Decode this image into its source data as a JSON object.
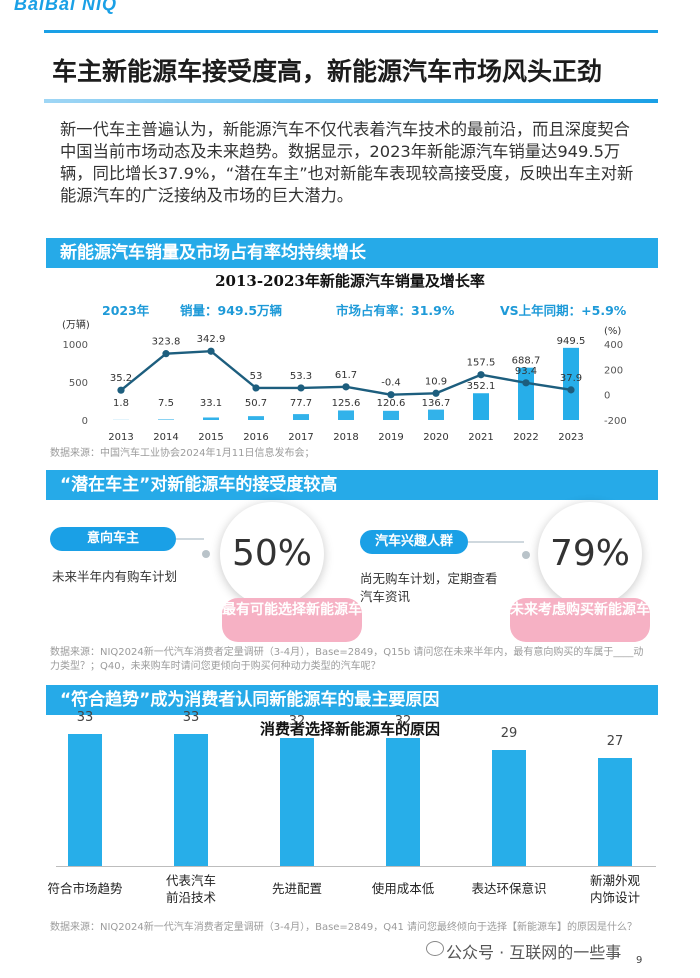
{
  "header": {
    "logo_text": "BaiBai NIQ",
    "title": "车主新能源车接受度高，新能源汽车市场风头正劲"
  },
  "intro": "新一代车主普遍认为，新能源汽车不仅代表着汽车技术的最前沿，而且深度契合中国当前市场动态及未来趋势。数据显示，2023年新能源汽车销量达949.5万辆，同比增长37.9%，“潜在车主”也对新能车表现较高接受度，反映出车主对新能源汽车的广泛接纳及市场的巨大潜力。",
  "section1": {
    "band": "新能源汽车销量及市场占有率均持续增长",
    "chart_title": "2013-2023年新能源汽车销量及增长率",
    "kpis": {
      "year": "2023年",
      "sales": "销量：949.5万辆",
      "share": "市场占有率：31.9%",
      "yoy": "VS上年同期：+5.9%"
    },
    "left_unit": "(万辆)",
    "right_unit": "(%)",
    "left_ticks": [
      "1000",
      "500",
      "0"
    ],
    "right_ticks": [
      "400",
      "200",
      "0",
      "-200"
    ],
    "source": "数据来源：中国汽车工业协会2024年1月11日信息发布会；"
  },
  "section2": {
    "band": "“潜在车主”对新能源车的接受度较高",
    "left": {
      "pill": "意向车主",
      "desc": "未来半年内有购车计划",
      "percent": "50%",
      "callout": "最有可能选择新能源车"
    },
    "right": {
      "pill": "汽车兴趣人群",
      "desc": "尚无购车计划，定期查看汽车资讯",
      "percent": "79%",
      "callout": "未来考虑购买新能源车"
    },
    "source": "数据来源：NIQ2024新一代汽车消费者定量调研（3-4月），Base=2849，Q15b 请问您在未来半年内，最有意向购买的车属于____动力类型？；Q40，未来购车时请问您更倾向于购买何种动力类型的汽车呢？"
  },
  "section3": {
    "band": "“符合趋势”成为消费者认同新能源车的最主要原因",
    "chart_title": "消费者选择新能源车的原因",
    "source": "数据来源：NIQ2024新一代汽车消费者定量调研（3-4月），Base=2849，Q41 请问您最终倾向于选择【新能源车】的原因是什么？"
  },
  "chart_data": [
    {
      "type": "bar",
      "title": "2013-2023年新能源汽车销量及增长率",
      "categories": [
        "2013",
        "2014",
        "2015",
        "2016",
        "2017",
        "2018",
        "2019",
        "2020",
        "2021",
        "2022",
        "2023"
      ],
      "series": [
        {
          "name": "销量",
          "axis": "left",
          "values": [
            1.8,
            7.5,
            33.1,
            50.7,
            77.7,
            125.6,
            120.6,
            136.7,
            352.1,
            688.7,
            949.5
          ]
        },
        {
          "name": "增长率",
          "type": "line",
          "axis": "right",
          "values": [
            35.2,
            323.8,
            342.9,
            53,
            53.3,
            61.7,
            -0.4,
            10.9,
            157.5,
            93.4,
            37.9
          ]
        }
      ],
      "bar_labels": [
        "1.8",
        "7.5",
        "33.1",
        "50.7",
        "77.7",
        "125.6",
        "120.6",
        "136.7",
        "352.1",
        "688.7",
        "949.5"
      ],
      "line_labels": [
        "35.2",
        "323.8",
        "342.9",
        "53",
        "53.3",
        "61.7",
        "-0.4",
        "10.9",
        "157.5",
        "93.4",
        "37.9"
      ],
      "ylim_left": [
        0,
        1000
      ],
      "ylim_right": [
        -200,
        400
      ],
      "left_unit": "(万辆)",
      "right_unit": "(%)"
    },
    {
      "type": "bar",
      "title": "消费者选择新能源车的原因",
      "categories": [
        "符合市场趋势",
        "代表汽车前沿技术",
        "先进配置",
        "使用成本低",
        "表达环保意识",
        "新潮外观内饰设计"
      ],
      "values": [
        33,
        33,
        32,
        32,
        29,
        27
      ],
      "ylim": [
        0,
        40
      ]
    }
  ],
  "footer": {
    "watermark": "公众号 · 互联网的一些事",
    "page": "9"
  },
  "colors": {
    "accent": "#1aa0e6",
    "line": "#1d5e7e",
    "pink": "#f6b1c4"
  }
}
